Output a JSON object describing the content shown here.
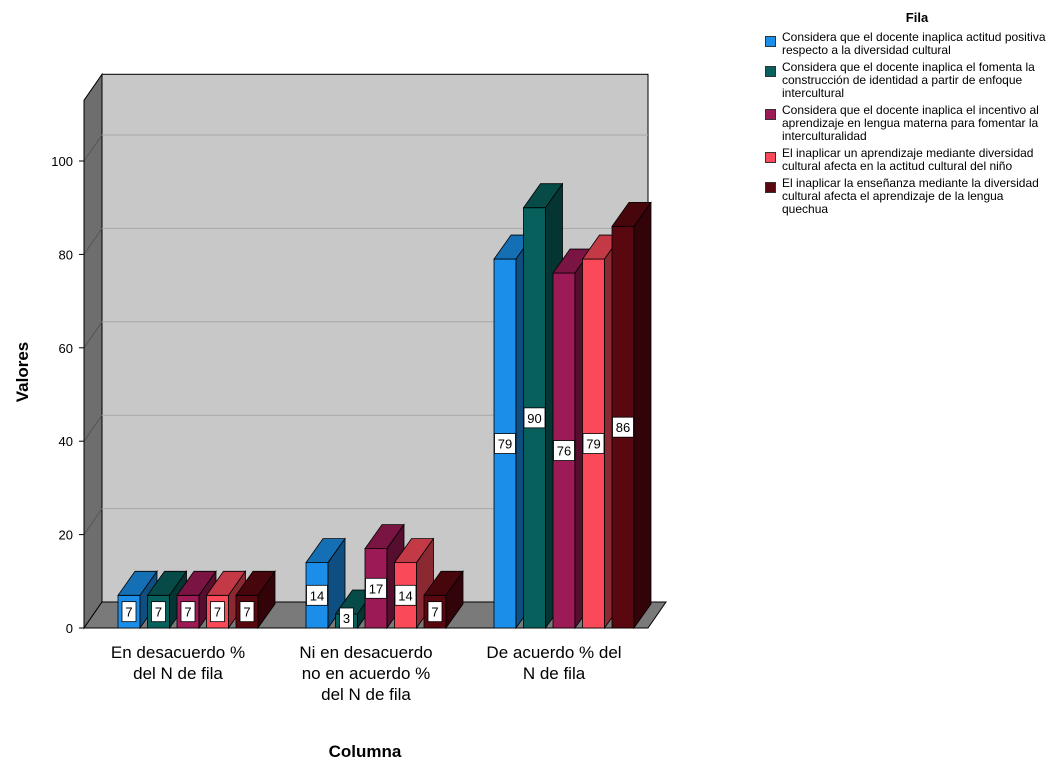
{
  "chart_data": {
    "type": "bar",
    "title": "",
    "xlabel": "Columna",
    "ylabel": "Valores",
    "ylim": [
      0,
      113
    ],
    "yticks": [
      0,
      20,
      40,
      60,
      80,
      100
    ],
    "grid": true,
    "legend_title": "Fila",
    "legend_position": "top-right",
    "categories": [
      "En desacuerdo % del N de fila",
      "Ni en desacuerdo no en acuerdo % del N de fila",
      "De acuerdo % del N de fila"
    ],
    "series": [
      {
        "name": "Considera que el docente inaplica actitud positiva respecto a la diversidad cultural",
        "color": "#1a8ee8",
        "values": [
          7,
          14,
          79
        ]
      },
      {
        "name": "Considera que el docente inaplica el fomenta la construcción de identidad a partir de enfoque intercultural",
        "color": "#08605c",
        "values": [
          7,
          3,
          90
        ]
      },
      {
        "name": "Considera que el docente inaplica el incentivo al aprendizaje en lengua materna para fomentar la interculturalidad",
        "color": "#9c1a55",
        "values": [
          7,
          17,
          76
        ]
      },
      {
        "name": "El inaplicar un aprendizaje mediante diversidad cultural afecta en la actitud cultural del niño",
        "color": "#fa4a5a",
        "values": [
          7,
          14,
          79
        ]
      },
      {
        "name": "El inaplicar la enseñanza mediante la diversidad cultural afecta el aprendizaje de la lengua quechua",
        "color": "#5a0810",
        "values": [
          7,
          7,
          86
        ]
      }
    ],
    "category_label_lines": [
      [
        "En desacuerdo %",
        "del N de fila"
      ],
      [
        "Ni en desacuerdo",
        "no en acuerdo %",
        "del N de fila"
      ],
      [
        "De acuerdo % del",
        "N de fila"
      ]
    ]
  }
}
